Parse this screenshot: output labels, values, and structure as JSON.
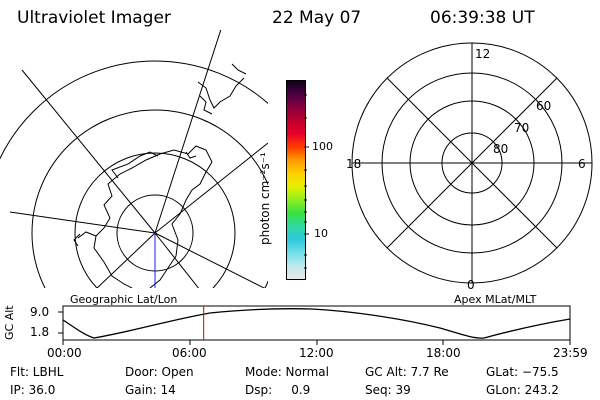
{
  "header": {
    "title": "Ultraviolet Imager",
    "date": "22 May 07",
    "time": "06:39:38 UT"
  },
  "colorbar": {
    "unit_label": "photon cm⁻²s⁻¹",
    "tick_100": "100",
    "tick_10": "10",
    "colors": [
      "#e8e8e8",
      "#bfe8ec",
      "#6fe0e6",
      "#2ec7e0",
      "#30d8a0",
      "#38e040",
      "#8cf020",
      "#e6f000",
      "#ffd000",
      "#ff9a00",
      "#ff3c00",
      "#e8002a",
      "#c0002c",
      "#8a0040",
      "#4a0040",
      "#140020"
    ]
  },
  "maps": {
    "left_caption": "Geographic Lat/Lon",
    "right_caption": "Apex MLat/MLT",
    "mlt_top": "12",
    "mlt_bottom": "0",
    "mlt_left": "18",
    "mlt_right": "6",
    "lat_60": "60",
    "lat_70": "70",
    "lat_80": "80"
  },
  "altitude_plot": {
    "ylabel": "GC Alt",
    "ytick_top": "9.0",
    "ytick_bottom": "1.8",
    "xticks": [
      "00:00",
      "06:00",
      "12:00",
      "18:00",
      "23:59"
    ],
    "current_time_hours": 6.66
  },
  "info": {
    "flt": "Flt: LBHL",
    "door": "Door: Open",
    "mode": "Mode: Normal",
    "gc_alt": "GC Alt: 7.7 Re",
    "glat": "GLat: −75.5",
    "ip": "IP: 36.0",
    "gain": "Gain: 14",
    "dsp": "Dsp:     0.9",
    "seq": "Seq: 39",
    "glon": "GLon: 243.2"
  }
}
